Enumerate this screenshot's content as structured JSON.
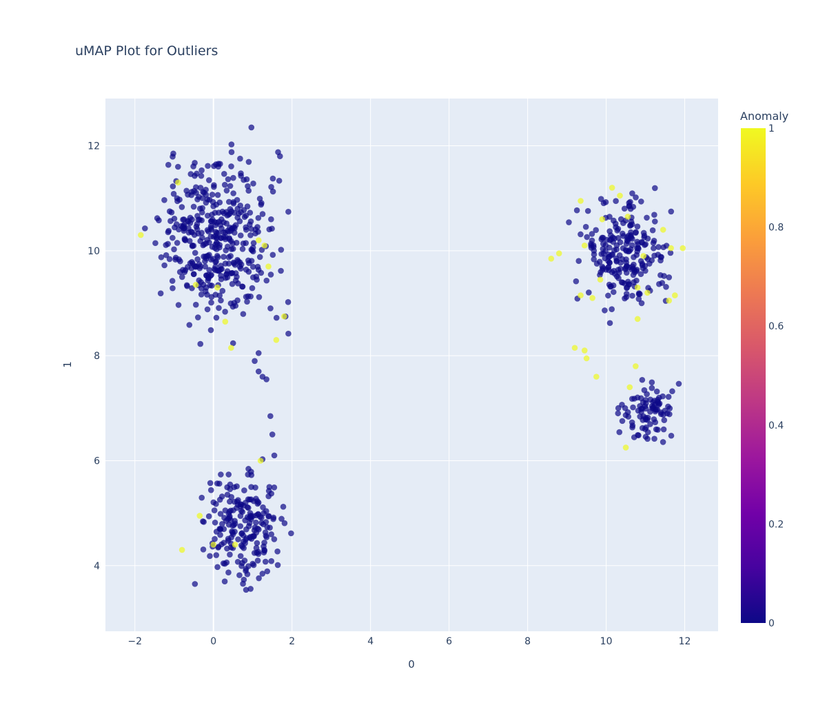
{
  "chart_data": {
    "type": "scatter",
    "title": "uMAP Plot for Outliers",
    "xlabel": "0",
    "ylabel": "1",
    "xlim": [
      -2.75,
      12.85
    ],
    "ylim": [
      2.75,
      12.9
    ],
    "x_ticks": [
      -2,
      0,
      2,
      4,
      6,
      8,
      10,
      12
    ],
    "y_ticks": [
      4,
      6,
      8,
      10,
      12
    ],
    "grid": true,
    "plot_background": "#e5ecf6",
    "colorbar": {
      "title": "Anomaly",
      "range": [
        0,
        1
      ],
      "ticks": [
        0,
        0.2,
        0.4,
        0.6,
        0.8,
        1
      ],
      "colorscale": [
        "#0d0887",
        "#46039f",
        "#7201a8",
        "#9c179e",
        "#bd3786",
        "#d8576b",
        "#ed7953",
        "#fb9f3a",
        "#fdca26",
        "#f0f921"
      ]
    },
    "marker_opacity": 0.7,
    "clusters": [
      {
        "name": "upper-left",
        "center": [
          0.15,
          10.25
        ],
        "spread": [
          0.95,
          1.05
        ],
        "count": 420,
        "bounds": [
          -1.9,
          1.95,
          8.2,
          12.35
        ]
      },
      {
        "name": "lower-left",
        "center": [
          0.7,
          4.75
        ],
        "spread": [
          0.65,
          0.7
        ],
        "count": 210,
        "bounds": [
          -1.0,
          2.1,
          3.2,
          6.05
        ]
      },
      {
        "name": "upper-right",
        "center": [
          10.5,
          10.0
        ],
        "spread": [
          0.7,
          0.65
        ],
        "count": 230,
        "bounds": [
          8.5,
          12.0,
          8.35,
          11.85
        ]
      },
      {
        "name": "lower-right",
        "center": [
          11.1,
          6.9
        ],
        "spread": [
          0.45,
          0.35
        ],
        "count": 90,
        "bounds": [
          10.1,
          12.05,
          6.2,
          7.9
        ]
      }
    ],
    "connector_points": [
      [
        1.05,
        7.9
      ],
      [
        1.15,
        7.7
      ],
      [
        1.25,
        7.6
      ],
      [
        1.35,
        7.55
      ],
      [
        1.45,
        6.85
      ],
      [
        1.5,
        6.5
      ],
      [
        1.55,
        6.1
      ],
      [
        1.15,
        8.05
      ]
    ],
    "anomalies": [
      [
        -1.85,
        10.3
      ],
      [
        -0.9,
        11.3
      ],
      [
        -0.45,
        9.35
      ],
      [
        0.1,
        9.3
      ],
      [
        0.3,
        8.65
      ],
      [
        0.45,
        8.15
      ],
      [
        1.15,
        10.2
      ],
      [
        1.3,
        10.1
      ],
      [
        1.4,
        9.7
      ],
      [
        1.6,
        8.3
      ],
      [
        1.8,
        8.75
      ],
      [
        1.2,
        6.0
      ],
      [
        -0.35,
        4.95
      ],
      [
        -0.8,
        4.3
      ],
      [
        0.0,
        4.4
      ],
      [
        0.55,
        4.4
      ],
      [
        8.6,
        9.85
      ],
      [
        8.8,
        9.95
      ],
      [
        9.35,
        10.95
      ],
      [
        9.45,
        10.1
      ],
      [
        9.9,
        10.6
      ],
      [
        10.15,
        11.2
      ],
      [
        10.35,
        11.05
      ],
      [
        10.55,
        10.65
      ],
      [
        11.45,
        10.4
      ],
      [
        11.65,
        10.05
      ],
      [
        11.95,
        10.05
      ],
      [
        10.95,
        9.9
      ],
      [
        9.35,
        9.15
      ],
      [
        9.65,
        9.1
      ],
      [
        9.85,
        9.45
      ],
      [
        10.8,
        9.3
      ],
      [
        11.05,
        9.2
      ],
      [
        11.6,
        9.05
      ],
      [
        11.75,
        9.15
      ],
      [
        10.8,
        8.7
      ],
      [
        9.2,
        8.15
      ],
      [
        9.45,
        8.1
      ],
      [
        9.5,
        7.95
      ],
      [
        9.75,
        7.6
      ],
      [
        10.75,
        7.8
      ],
      [
        10.6,
        7.4
      ],
      [
        10.5,
        6.25
      ]
    ]
  }
}
